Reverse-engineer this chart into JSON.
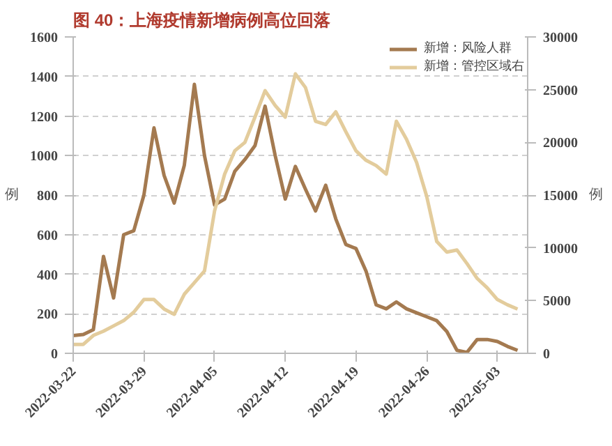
{
  "chart_data": {
    "type": "line",
    "title": "图 40：上海疫情新增病例高位回落",
    "ylabel": "例",
    "y2label": "例",
    "x": [
      "2022-03-22",
      "2022-03-23",
      "2022-03-24",
      "2022-03-25",
      "2022-03-26",
      "2022-03-27",
      "2022-03-28",
      "2022-03-29",
      "2022-03-30",
      "2022-03-31",
      "2022-04-01",
      "2022-04-02",
      "2022-04-03",
      "2022-04-04",
      "2022-04-05",
      "2022-04-06",
      "2022-04-07",
      "2022-04-08",
      "2022-04-09",
      "2022-04-10",
      "2022-04-11",
      "2022-04-12",
      "2022-04-13",
      "2022-04-14",
      "2022-04-15",
      "2022-04-16",
      "2022-04-17",
      "2022-04-18",
      "2022-04-19",
      "2022-04-20",
      "2022-04-21",
      "2022-04-22",
      "2022-04-23",
      "2022-04-24",
      "2022-04-25",
      "2022-04-26",
      "2022-04-27",
      "2022-04-28",
      "2022-04-29",
      "2022-04-30",
      "2022-05-01",
      "2022-05-02",
      "2022-05-03",
      "2022-05-04",
      "2022-05-05"
    ],
    "series": [
      {
        "name": "新增：风险人群",
        "color": "#a47a50",
        "values": [
          90,
          95,
          120,
          490,
          280,
          600,
          620,
          800,
          1140,
          900,
          760,
          950,
          1360,
          1000,
          750,
          780,
          920,
          980,
          1050,
          1250,
          1000,
          780,
          945,
          830,
          720,
          850,
          680,
          550,
          530,
          415,
          245,
          225,
          260,
          225,
          205,
          185,
          165,
          110,
          15,
          5,
          70,
          70,
          60,
          35,
          15
        ]
      },
      {
        "name": "新增：管控区域右",
        "color": "#e3cc9c",
        "axis": "y2",
        "values": [
          850,
          850,
          1700,
          2100,
          2600,
          3100,
          3900,
          5100,
          5100,
          4200,
          3700,
          5600,
          6700,
          7800,
          13500,
          17000,
          19200,
          20000,
          22400,
          24900,
          23500,
          22400,
          26500,
          25200,
          22000,
          21700,
          22900,
          21000,
          19200,
          18300,
          17800,
          17000,
          22000,
          20300,
          18100,
          14900,
          10600,
          9600,
          9800,
          8500,
          7100,
          6200,
          5100,
          4600,
          4200
        ]
      }
    ],
    "xlim": [
      "2022-03-22",
      "2022-05-06"
    ],
    "xticks": [
      "2022-03-22",
      "2022-03-29",
      "2022-04-05",
      "2022-04-12",
      "2022-04-19",
      "2022-04-26",
      "2022-05-03"
    ],
    "ylim": [
      0,
      1600
    ],
    "yticks": [
      0,
      200,
      400,
      600,
      800,
      1000,
      1200,
      1400,
      1600
    ],
    "y2lim": [
      0,
      30000
    ],
    "y2ticks": [
      0,
      5000,
      10000,
      15000,
      20000,
      25000,
      30000
    ],
    "grid": "y",
    "legend": "top right",
    "line_style": "solid"
  }
}
